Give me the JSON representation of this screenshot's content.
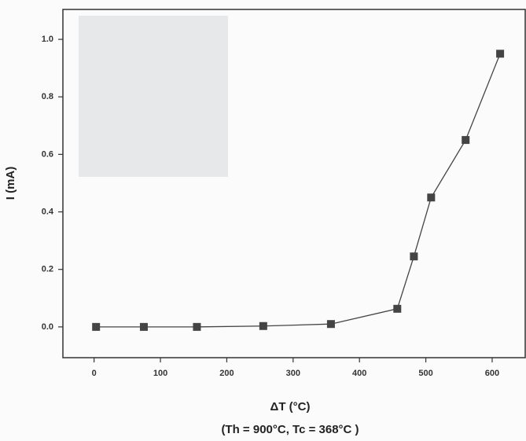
{
  "chart_data": {
    "type": "line",
    "x_label": "ΔT (°C)",
    "x_note": "(Th = 900°C, Tc = 368°C )",
    "y_label": "I (mA)",
    "x": [
      3,
      75,
      155,
      255,
      357,
      457,
      482,
      508,
      560,
      612
    ],
    "series": [
      {
        "color": "#444444",
        "values": [
          0.0,
          0.0,
          0.0,
          0.003,
          0.01,
          0.063,
          0.245,
          0.45,
          0.65,
          0.95
        ]
      }
    ],
    "xlim": [
      -47,
      651
    ],
    "ylim": [
      -0.107,
      1.104
    ],
    "xticks": [
      0,
      100,
      200,
      300,
      400,
      500,
      600
    ],
    "yticks": [
      {
        "value": 0,
        "label": "0.0"
      },
      0.2,
      0.4,
      0.6,
      0.8,
      {
        "value": 1,
        "label": "1.0"
      }
    ]
  }
}
